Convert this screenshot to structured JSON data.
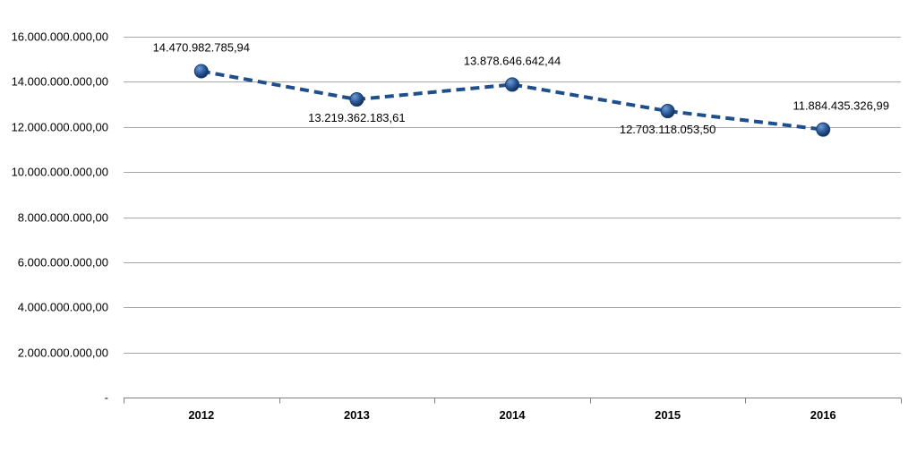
{
  "chart_data": {
    "type": "line",
    "categories": [
      "2012",
      "2013",
      "2014",
      "2015",
      "2016"
    ],
    "series": [
      {
        "values": [
          14470982785.94,
          13219362183.61,
          13878646642.44,
          12703118053.5,
          11884435326.99
        ],
        "labels": [
          "14.470.982.785,94",
          "13.219.362.183,61",
          "13.878.646.642,44",
          "12.703.118.053,50",
          "11.884.435.326,99"
        ],
        "line_style": "dashed",
        "color": "#1F4E8C"
      }
    ],
    "ylim": [
      0,
      16000000000
    ],
    "yticks": [
      0,
      2000000000,
      4000000000,
      6000000000,
      8000000000,
      10000000000,
      12000000000,
      14000000000,
      16000000000
    ],
    "ytick_labels": [
      "-",
      "2.000.000.000,00",
      "4.000.000.000,00",
      "6.000.000.000,00",
      "8.000.000.000,00",
      "10.000.000.000,00",
      "12.000.000.000,00",
      "14.000.000.000,00",
      "16.000.000.000,00"
    ],
    "grid": true,
    "gridline_color": "#A6A6A6"
  }
}
